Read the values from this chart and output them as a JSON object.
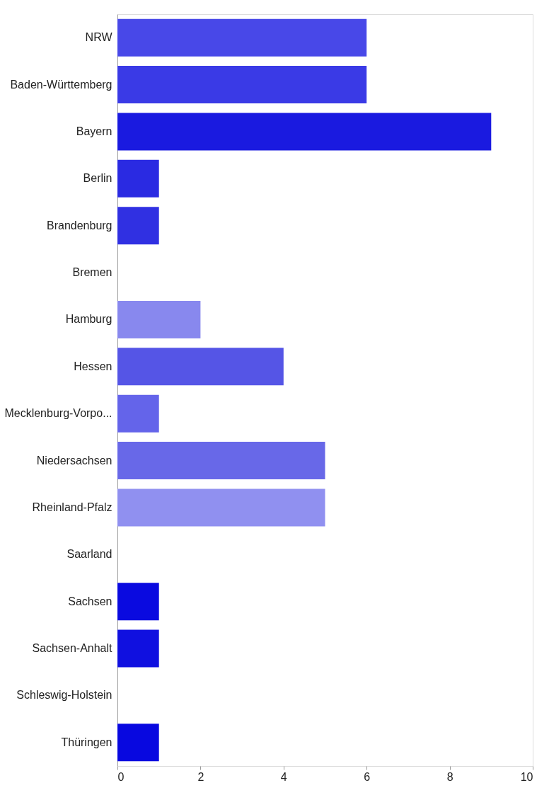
{
  "chart_data": {
    "type": "bar",
    "orientation": "horizontal",
    "categories": [
      "NRW",
      "Baden-Württemberg",
      "Bayern",
      "Berlin",
      "Brandenburg",
      "Bremen",
      "Hamburg",
      "Hessen",
      "Mecklenburg-Vorpo...",
      "Niedersachsen",
      "Rheinland-Pfalz",
      "Saarland",
      "Sachsen",
      "Sachsen-Anhalt",
      "Schleswig-Holstein",
      "Thüringen"
    ],
    "values": [
      6,
      6,
      9,
      1,
      1,
      0,
      2,
      4,
      1,
      5,
      5,
      0,
      1,
      1,
      0,
      1
    ],
    "colors": [
      "#4848e8",
      "#3a3ae6",
      "#1a1ae0",
      "#2a2ae2",
      "#3030e2",
      "#3030e2",
      "#8888ee",
      "#5555e6",
      "#6464ea",
      "#6868e8",
      "#9090f0",
      "#3030e2",
      "#0a0ae0",
      "#1010e0",
      "#3030e2",
      "#0808e0"
    ],
    "xlim": [
      0,
      10
    ],
    "xticks": [
      0,
      2,
      4,
      6,
      8,
      10
    ],
    "grid": false
  }
}
